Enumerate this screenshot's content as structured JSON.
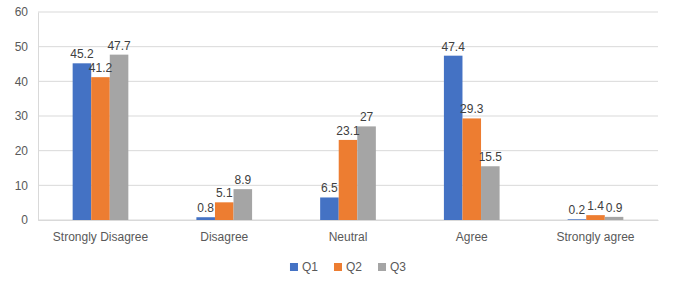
{
  "chart_data": {
    "type": "bar",
    "categories": [
      "Strongly Disagree",
      "Disagree",
      "Neutral",
      "Agree",
      "Strongly agree"
    ],
    "series": [
      {
        "name": "Q1",
        "color": "#4472c4",
        "values": [
          45.2,
          0.8,
          6.5,
          47.4,
          0.2
        ]
      },
      {
        "name": "Q2",
        "color": "#ed7d31",
        "values": [
          41.2,
          5.1,
          23.1,
          29.3,
          1.4
        ]
      },
      {
        "name": "Q3",
        "color": "#a5a5a5",
        "values": [
          47.7,
          8.9,
          27,
          15.5,
          0.9
        ]
      }
    ],
    "ylim": [
      0,
      60
    ],
    "yticks": [
      0,
      10,
      20,
      30,
      40,
      50,
      60
    ],
    "grid": true,
    "data_labels": true,
    "legend": "bottom"
  }
}
